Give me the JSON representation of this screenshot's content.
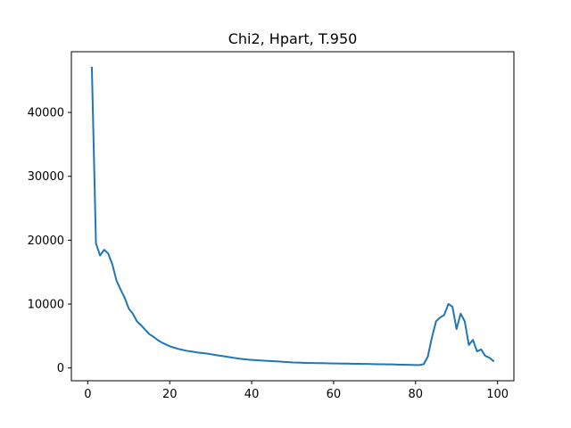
{
  "chart_data": {
    "type": "line",
    "title": "Chi2, Hpart, T.950",
    "xlabel": "",
    "ylabel": "",
    "xlim": [
      -4,
      104
    ],
    "ylim": [
      -2000,
      49500
    ],
    "xticks": [
      0,
      20,
      40,
      60,
      80,
      100
    ],
    "yticks": [
      0,
      10000,
      20000,
      30000,
      40000
    ],
    "grid": false,
    "line_color": "#1f77b4",
    "series": [
      {
        "x": [
          1,
          2,
          3,
          4,
          5,
          6,
          7,
          8,
          9,
          10,
          11,
          12,
          13,
          14,
          15,
          16,
          17,
          18,
          19,
          20,
          21,
          22,
          23,
          24,
          25,
          26,
          27,
          28,
          29,
          30,
          31,
          32,
          33,
          34,
          35,
          36,
          37,
          38,
          39,
          40,
          41,
          42,
          43,
          44,
          45,
          46,
          47,
          48,
          49,
          50,
          51,
          52,
          53,
          54,
          55,
          56,
          57,
          58,
          59,
          60,
          61,
          62,
          63,
          64,
          65,
          66,
          67,
          68,
          69,
          70,
          71,
          72,
          73,
          74,
          75,
          76,
          77,
          78,
          79,
          80,
          81,
          82,
          83,
          84,
          85,
          86,
          87,
          88,
          89,
          90,
          91,
          92,
          93,
          94,
          95,
          96,
          97,
          98,
          99
        ],
        "values": [
          47000,
          19500,
          17600,
          18500,
          17900,
          16200,
          13700,
          12300,
          11000,
          9300,
          8500,
          7300,
          6700,
          6000,
          5300,
          4900,
          4400,
          4000,
          3700,
          3400,
          3200,
          3000,
          2850,
          2700,
          2600,
          2500,
          2400,
          2350,
          2250,
          2150,
          2050,
          1950,
          1850,
          1750,
          1650,
          1550,
          1450,
          1380,
          1320,
          1270,
          1220,
          1180,
          1140,
          1100,
          1070,
          1040,
          1000,
          950,
          910,
          870,
          850,
          820,
          800,
          780,
          770,
          760,
          750,
          740,
          730,
          710,
          700,
          690,
          680,
          670,
          660,
          650,
          640,
          630,
          620,
          600,
          590,
          580,
          570,
          560,
          540,
          520,
          510,
          500,
          480,
          460,
          460,
          600,
          1800,
          4800,
          7300,
          7900,
          8300,
          10000,
          9600,
          6100,
          8500,
          7300,
          3600,
          4400,
          2600,
          2900,
          1900,
          1600,
          1100
        ]
      }
    ]
  }
}
